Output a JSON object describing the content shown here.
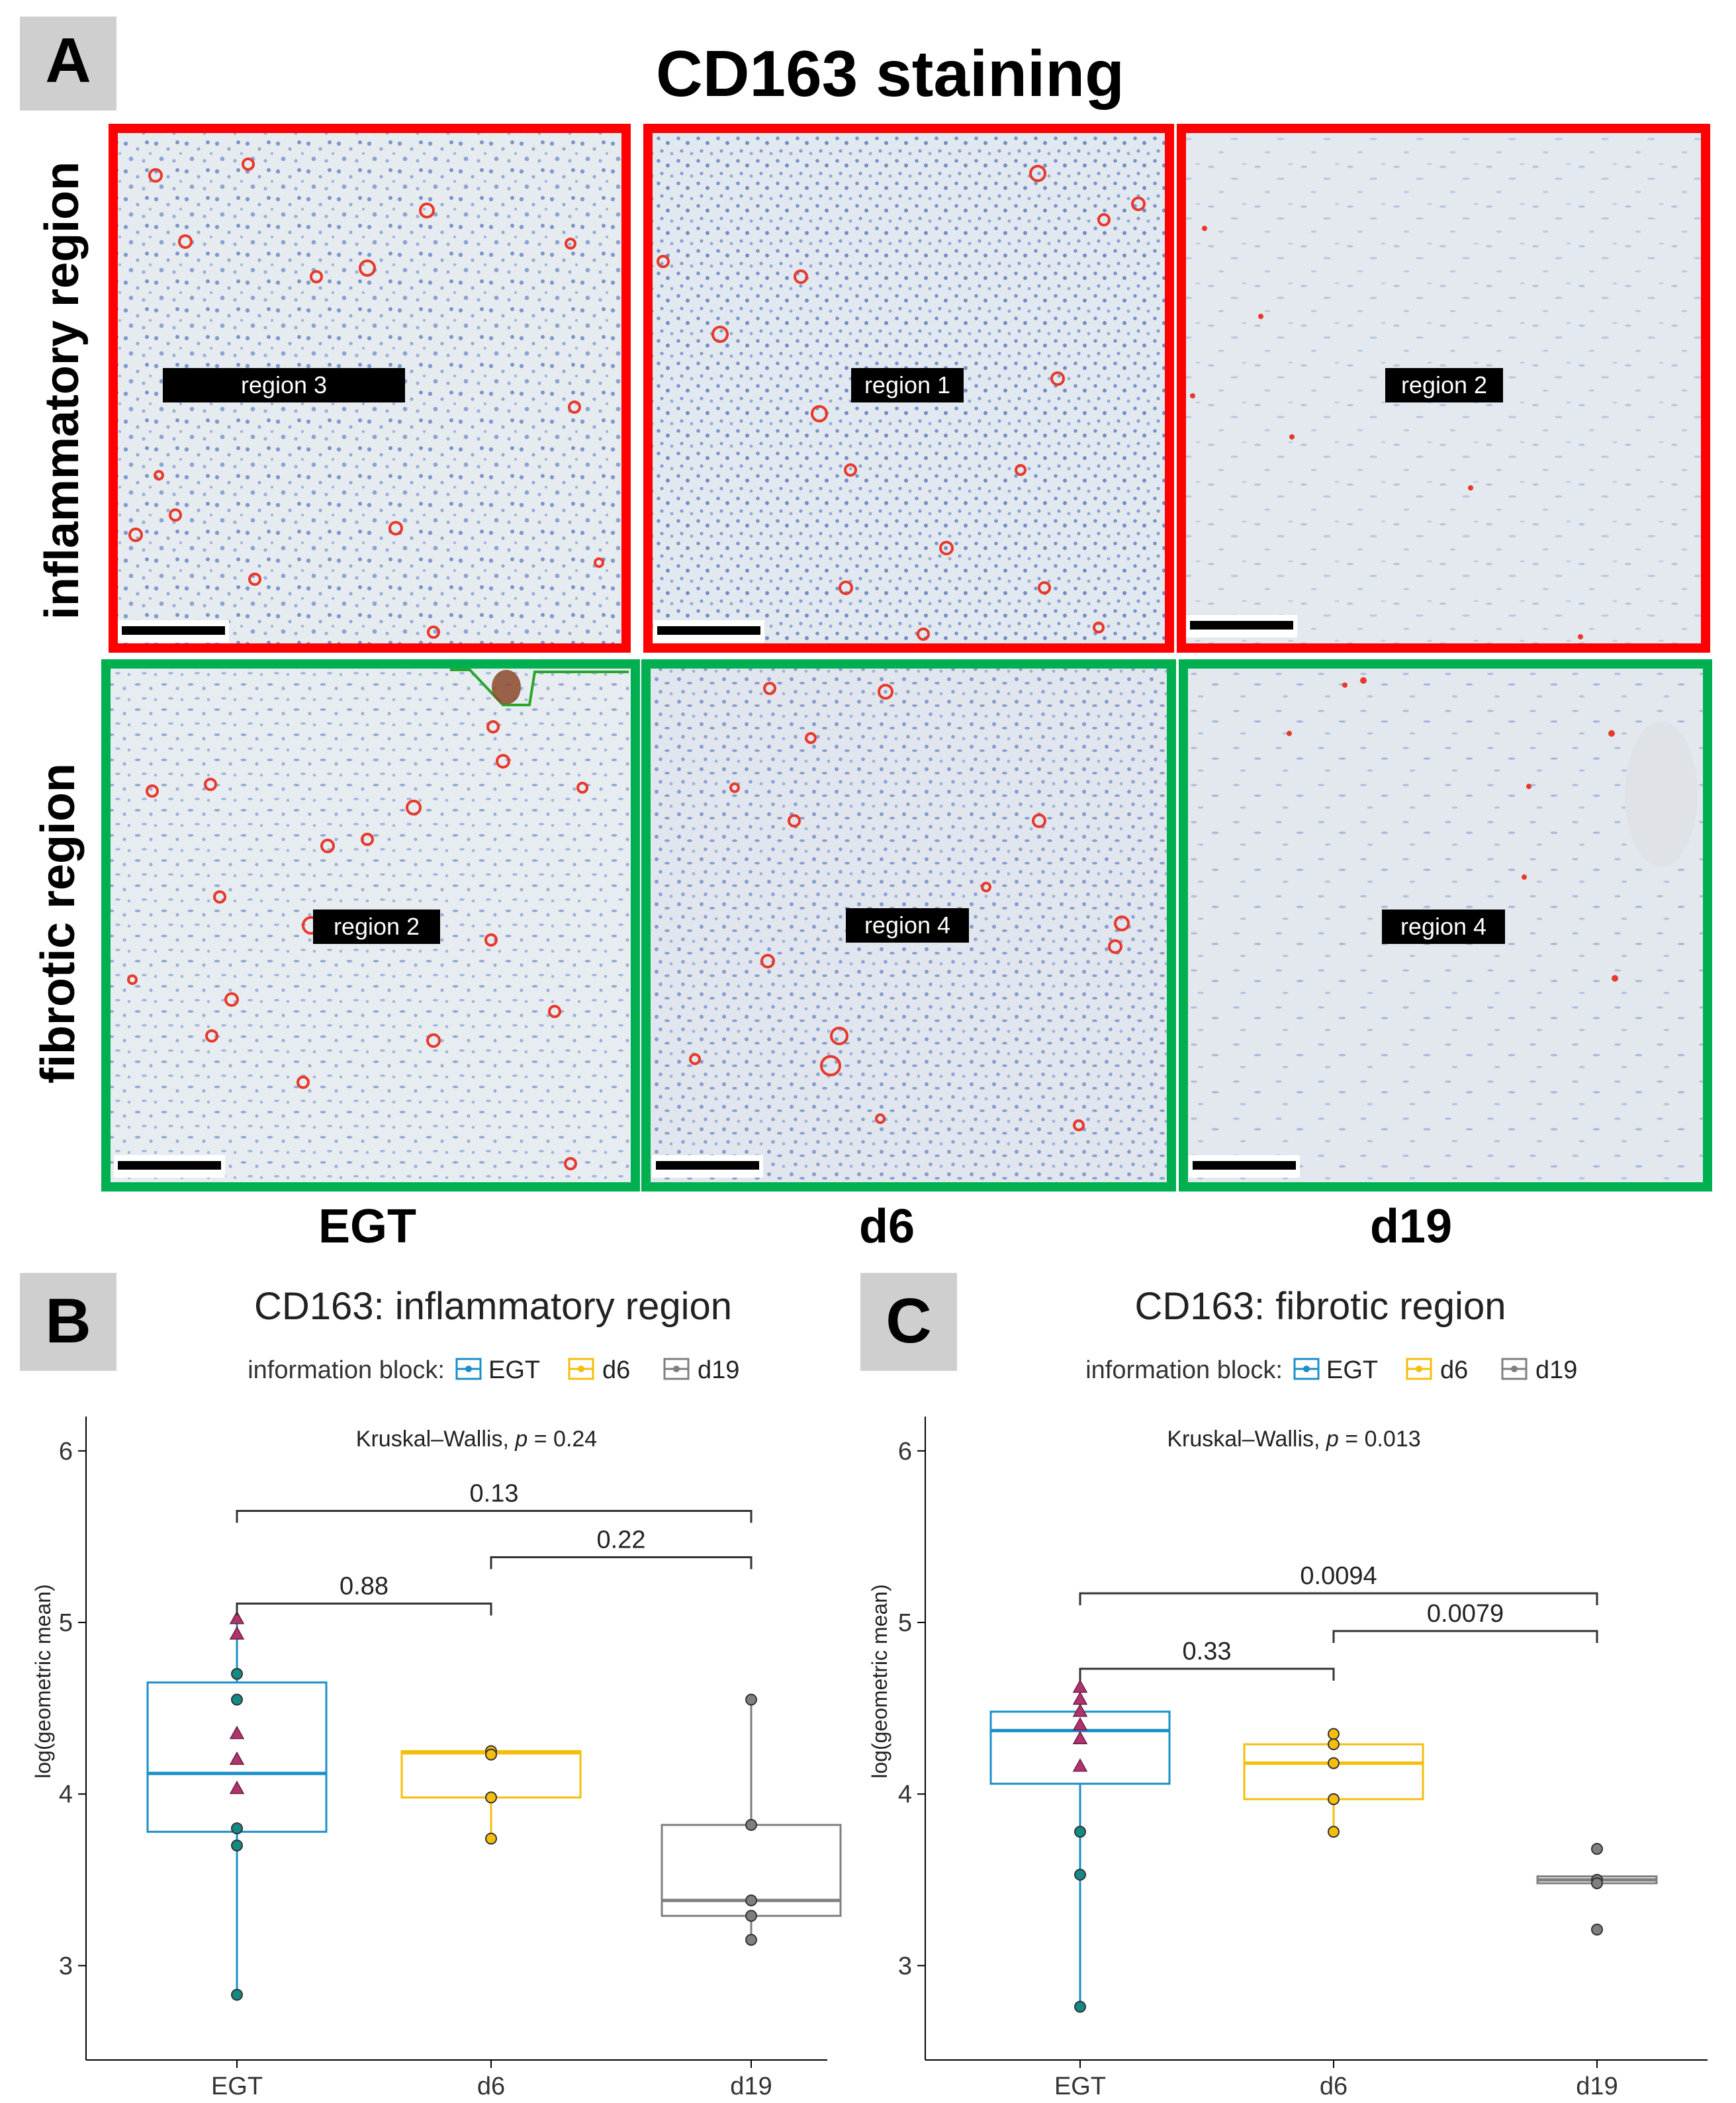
{
  "panel_a": {
    "letter": "A",
    "title": "CD163 staining",
    "row_labels": [
      "inflammatory region",
      "fibrotic region"
    ],
    "column_labels": [
      "EGT",
      "d6",
      "d19"
    ],
    "region_labels": [
      [
        "region 3",
        "region 1",
        "region 2"
      ],
      [
        "region 2",
        "region 4",
        "region 4"
      ]
    ],
    "colors": {
      "inflammatory_frame": "#ff0000",
      "fibrotic_frame": "#00b050",
      "tissue": "#e2e8ef",
      "nuclei": "#5b7fc4",
      "cd163_positive": "#e8382a",
      "letter_box": "#cfcfcf"
    }
  },
  "legend_colors": {
    "EGT": "#1a8fc9",
    "d6": "#f5be0b",
    "d19": "#7f7f7f",
    "points_EGT": "#138a86",
    "triangles": "#b0336b"
  },
  "chart_data": [
    {
      "panel": "B",
      "type": "box",
      "title": "CD163: inflammatory region",
      "legend_title": "information block:",
      "legend_entries": [
        "EGT",
        "d6",
        "d19"
      ],
      "test_label": "Kruskal–Wallis, ",
      "test_p_symbol": "p",
      "test_p_value": " = 0.24",
      "categories": [
        "EGT",
        "d6",
        "d19"
      ],
      "ylabel": "log(geometric mean)",
      "ylim": [
        2.45,
        6.2
      ],
      "yticks": [
        3,
        4,
        5,
        6
      ],
      "boxes": [
        {
          "category": "EGT",
          "q1": 3.78,
          "median": 4.12,
          "q3": 4.65,
          "whisker_low": 2.83,
          "whisker_high": 5.02
        },
        {
          "category": "d6",
          "q1": 3.98,
          "median": 4.24,
          "q3": 4.25,
          "whisker_low": 3.74,
          "whisker_high": 4.26
        },
        {
          "category": "d19",
          "q1": 3.29,
          "median": 3.38,
          "q3": 3.82,
          "whisker_low": 3.15,
          "whisker_high": 4.55
        }
      ],
      "points": [
        {
          "category": "EGT",
          "values": [
            3.8,
            3.7,
            2.83,
            4.7,
            4.55
          ]
        },
        {
          "category": "d6",
          "values": [
            4.25,
            4.23,
            3.98,
            3.74
          ]
        },
        {
          "category": "d19",
          "values": [
            4.55,
            3.82,
            3.38,
            3.29,
            3.15
          ]
        }
      ],
      "triangles": [
        {
          "category": "EGT",
          "values": [
            5.02,
            4.93,
            4.35,
            4.2,
            4.03
          ]
        }
      ],
      "comparisons": [
        {
          "from": "EGT",
          "to": "d6",
          "y": 5.11,
          "label": "0.88"
        },
        {
          "from": "d6",
          "to": "d19",
          "y": 5.38,
          "label": "0.22"
        },
        {
          "from": "EGT",
          "to": "d19",
          "y": 5.65,
          "label": "0.13"
        }
      ]
    },
    {
      "panel": "C",
      "type": "box",
      "title": "CD163: fibrotic region",
      "legend_title": "information block:",
      "legend_entries": [
        "EGT",
        "d6",
        "d19"
      ],
      "test_label": "Kruskal–Wallis, ",
      "test_p_symbol": "p",
      "test_p_value": " = 0.013",
      "categories": [
        "EGT",
        "d6",
        "d19"
      ],
      "ylabel": "log(geometric mean)",
      "ylim": [
        2.45,
        6.2
      ],
      "yticks": [
        3,
        4,
        5,
        6
      ],
      "boxes": [
        {
          "category": "EGT",
          "q1": 4.06,
          "median": 4.37,
          "q3": 4.48,
          "whisker_low": 2.76,
          "whisker_high": 4.62
        },
        {
          "category": "d6",
          "q1": 3.97,
          "median": 4.18,
          "q3": 4.29,
          "whisker_low": 3.78,
          "whisker_high": 4.35
        },
        {
          "category": "d19",
          "q1": 3.48,
          "median": 3.5,
          "q3": 3.52,
          "whisker_low": 3.47,
          "whisker_high": 3.53
        }
      ],
      "points": [
        {
          "category": "EGT",
          "values": [
            3.78,
            3.53,
            2.76
          ]
        },
        {
          "category": "d6",
          "values": [
            4.35,
            4.29,
            4.18,
            3.97,
            3.78
          ]
        },
        {
          "category": "d19",
          "values": [
            3.68,
            3.5,
            3.48,
            3.21
          ]
        }
      ],
      "triangles": [
        {
          "category": "EGT",
          "values": [
            4.62,
            4.55,
            4.48,
            4.4,
            4.32,
            4.16
          ]
        }
      ],
      "comparisons": [
        {
          "from": "EGT",
          "to": "d6",
          "y": 4.73,
          "label": "0.33"
        },
        {
          "from": "d6",
          "to": "d19",
          "y": 4.95,
          "label": "0.0079"
        },
        {
          "from": "EGT",
          "to": "d19",
          "y": 5.17,
          "label": "0.0094"
        }
      ]
    }
  ]
}
